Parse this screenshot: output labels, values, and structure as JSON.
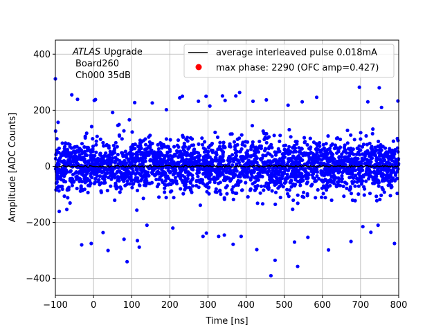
{
  "chart_data": {
    "type": "scatter",
    "title": "",
    "xlabel": "Time [ns]",
    "ylabel": "Amplitude [ADC Counts]",
    "xlim": [
      -100,
      800
    ],
    "ylim": [
      -460,
      450
    ],
    "xticks": [
      -100,
      0,
      100,
      200,
      300,
      400,
      500,
      600,
      700,
      800
    ],
    "xtick_labels": [
      "−100",
      "0",
      "100",
      "200",
      "300",
      "400",
      "500",
      "600",
      "700",
      "800"
    ],
    "yticks": [
      -400,
      -200,
      0,
      200,
      400
    ],
    "ytick_labels": [
      "−400",
      "−200",
      "0",
      "200",
      "400"
    ],
    "grid": true,
    "legend_position": "top-right",
    "annotation": {
      "line1_italic": "ATLAS",
      "line1_rest": "Upgrade",
      "line2": "Board260",
      "line3": "Ch000 35dB"
    },
    "series": [
      {
        "name": "average interleaved pulse 0.018mA",
        "kind": "line",
        "color": "#000000",
        "x_range": [
          -100,
          800
        ],
        "y_mean": 0,
        "y_jitter": 3
      },
      {
        "name": "max phase: 2290 (OFC amp=0.427)",
        "kind": "scatter",
        "color": "#0000ff",
        "x_range": [
          -100,
          800
        ],
        "y_mean": 0,
        "y_core_spread": 110,
        "outliers": [
          [
            -100,
            312
          ],
          [
            -93,
            157
          ],
          [
            -57,
            255
          ],
          [
            -42,
            239
          ],
          [
            -18,
            118
          ],
          [
            5,
            238
          ],
          [
            2,
            235
          ],
          [
            50,
            192
          ],
          [
            67,
            149
          ],
          [
            94,
            166
          ],
          [
            108,
            227
          ],
          [
            154,
            226
          ],
          [
            191,
            202
          ],
          [
            226,
            244
          ],
          [
            233,
            250
          ],
          [
            275,
            232
          ],
          [
            295,
            250
          ],
          [
            305,
            215
          ],
          [
            338,
            251
          ],
          [
            345,
            235
          ],
          [
            373,
            251
          ],
          [
            383,
            263
          ],
          [
            418,
            232
          ],
          [
            453,
            237
          ],
          [
            510,
            218
          ],
          [
            547,
            230
          ],
          [
            585,
            246
          ],
          [
            697,
            282
          ],
          [
            719,
            230
          ],
          [
            749,
            280
          ],
          [
            755,
            210
          ],
          [
            798,
            233
          ],
          [
            -31,
            -280
          ],
          [
            -6,
            -275
          ],
          [
            25,
            -236
          ],
          [
            38,
            -300
          ],
          [
            80,
            -260
          ],
          [
            88,
            -340
          ],
          [
            115,
            -265
          ],
          [
            120,
            -288
          ],
          [
            140,
            -210
          ],
          [
            208,
            -220
          ],
          [
            287,
            -250
          ],
          [
            296,
            -238
          ],
          [
            328,
            -250
          ],
          [
            343,
            -245
          ],
          [
            366,
            -278
          ],
          [
            387,
            -250
          ],
          [
            428,
            -297
          ],
          [
            465,
            -390
          ],
          [
            476,
            -335
          ],
          [
            535,
            -357
          ],
          [
            527,
            -270
          ],
          [
            562,
            -253
          ],
          [
            616,
            -298
          ],
          [
            675,
            -268
          ],
          [
            706,
            -215
          ],
          [
            727,
            -235
          ],
          [
            746,
            -210
          ],
          [
            789,
            -275
          ]
        ]
      }
    ]
  }
}
